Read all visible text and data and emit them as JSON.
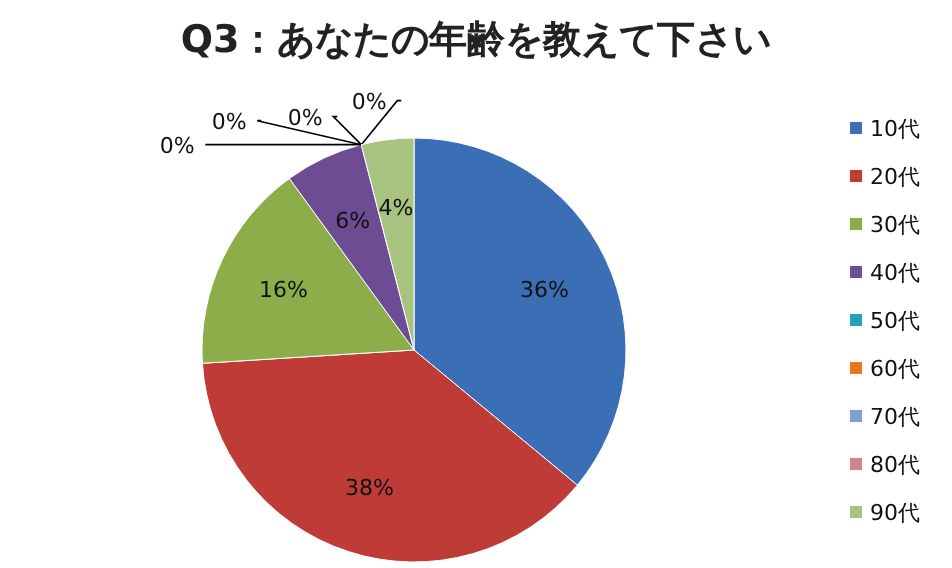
{
  "chart_data": {
    "type": "pie",
    "title": "Q3：あなたの年齢を教えて下さい",
    "categories": [
      "10代",
      "20代",
      "30代",
      "40代",
      "50代",
      "60代",
      "70代",
      "80代",
      "90代"
    ],
    "values": [
      36,
      38,
      16,
      6,
      0,
      0,
      0,
      0,
      4
    ],
    "colors": [
      "#3a6fb5",
      "#bf3b38",
      "#8cad4a",
      "#6d4c94",
      "#2aa1b9",
      "#ee7622",
      "#7f9fcf",
      "#d08584",
      "#a7c37f"
    ],
    "value_labels": [
      "36%",
      "38%",
      "16%",
      "6%",
      "0%",
      "0%",
      "0%",
      "0%",
      "4%"
    ],
    "legend": "right"
  }
}
